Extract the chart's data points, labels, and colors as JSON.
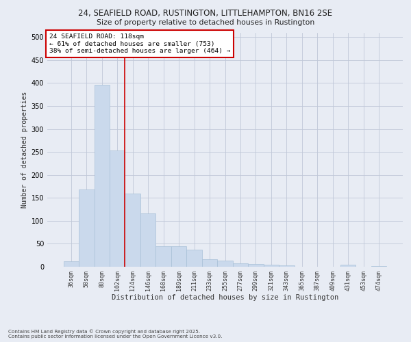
{
  "title_line1": "24, SEAFIELD ROAD, RUSTINGTON, LITTLEHAMPTON, BN16 2SE",
  "title_line2": "Size of property relative to detached houses in Rustington",
  "xlabel": "Distribution of detached houses by size in Rustington",
  "ylabel": "Number of detached properties",
  "categories": [
    "36sqm",
    "58sqm",
    "80sqm",
    "102sqm",
    "124sqm",
    "146sqm",
    "168sqm",
    "189sqm",
    "211sqm",
    "233sqm",
    "255sqm",
    "277sqm",
    "299sqm",
    "321sqm",
    "343sqm",
    "365sqm",
    "387sqm",
    "409sqm",
    "431sqm",
    "453sqm",
    "474sqm"
  ],
  "values": [
    12,
    168,
    396,
    253,
    160,
    116,
    45,
    44,
    37,
    17,
    14,
    8,
    6,
    4,
    3,
    0,
    0,
    0,
    4,
    0,
    2
  ],
  "bar_color": "#cad9ec",
  "bar_edge_color": "#a8c0d8",
  "grid_color": "#c0c8d8",
  "background_color": "#e8ecf4",
  "vline_x": 3.5,
  "vline_color": "#cc0000",
  "annotation_text": "24 SEAFIELD ROAD: 118sqm\n← 61% of detached houses are smaller (753)\n38% of semi-detached houses are larger (464) →",
  "annotation_box_color": "#ffffff",
  "annotation_box_edge": "#cc0000",
  "ylim": [
    0,
    510
  ],
  "yticks": [
    0,
    50,
    100,
    150,
    200,
    250,
    300,
    350,
    400,
    450,
    500
  ],
  "footnote": "Contains HM Land Registry data © Crown copyright and database right 2025.\nContains public sector information licensed under the Open Government Licence v3.0.",
  "figsize": [
    6.0,
    5.0
  ],
  "dpi": 100
}
